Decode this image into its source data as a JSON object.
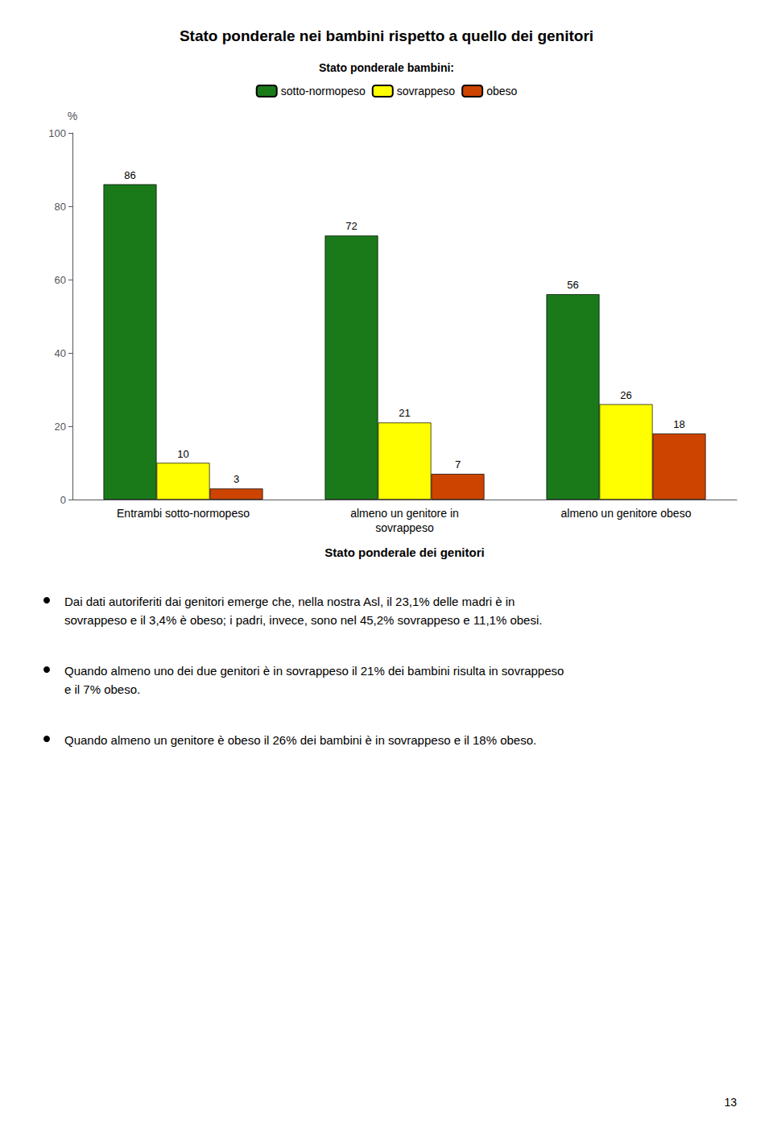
{
  "chart_data": {
    "type": "bar",
    "title": "Stato ponderale nei bambini rispetto a quello dei genitori",
    "legend_title": "Stato ponderale bambini:",
    "categories": [
      "Entrambi sotto-normopeso",
      "almeno un genitore in\nsovrappeso",
      "almeno un genitore obeso"
    ],
    "series": [
      {
        "name": "sotto-normopeso",
        "color": "#1a7a1a",
        "values": [
          86,
          72,
          56
        ]
      },
      {
        "name": "sovrappeso",
        "color": "#ffff00",
        "values": [
          10,
          21,
          26
        ]
      },
      {
        "name": "obeso",
        "color": "#cc4400",
        "values": [
          3,
          7,
          18
        ]
      }
    ],
    "xlabel": "Stato ponderale dei genitori",
    "ylabel": "%",
    "ylim": [
      0,
      100
    ],
    "yticks": [
      0,
      20,
      40,
      60,
      80,
      100
    ],
    "grid": false,
    "legend": "top",
    "data_labels": true,
    "annotations": [
      "Dai dati autoriferiti dai genitori emerge che, nella nostra Asl, il 23,1% delle madri è in\nsovrappeso e il 3,4% è obeso; i padri, invece, sono nel 45,2% sovrappeso e 11,1% obesi.",
      "Quando almeno uno dei due genitori è in sovrappeso il 21% dei bambini risulta in sovrappeso\ne il 7% obeso.",
      "Quando almeno un genitore è obeso il 26% dei bambini è in sovrappeso e il 18% obeso."
    ],
    "page_number": "13"
  }
}
